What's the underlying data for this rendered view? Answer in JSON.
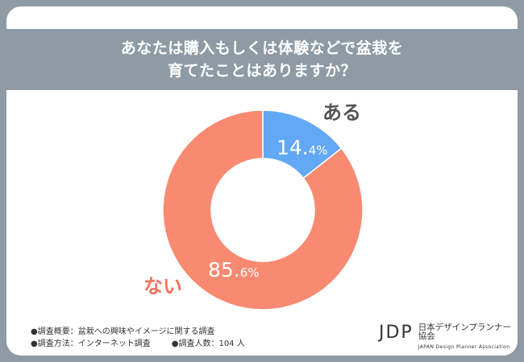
{
  "title": {
    "line1": "あなたは購入もしくは体験などで盆栽を",
    "line2": "育てたことはありますか？"
  },
  "chart_data": {
    "type": "pie",
    "style": "donut",
    "categories": [
      "ある",
      "ない"
    ],
    "values": [
      14.4,
      85.6
    ],
    "value_labels": [
      {
        "main": "14.",
        "sub": "4%"
      },
      {
        "main": "85.",
        "sub": "6%"
      }
    ],
    "colors": [
      "#62a8f5",
      "#f88a71"
    ],
    "category_label_colors": [
      "#555555",
      "#f4735a"
    ]
  },
  "footer": {
    "line1": "●調査概要：盆栽への興味やイメージに関する調査",
    "line2_a": "●調査方法：インターネット調査",
    "line2_b": "●調査人数：104 人"
  },
  "logo": {
    "mark": "JDP",
    "name_jp": "日本デザインプランナー協会",
    "name_en": "JAPAN Design Planner Association"
  }
}
